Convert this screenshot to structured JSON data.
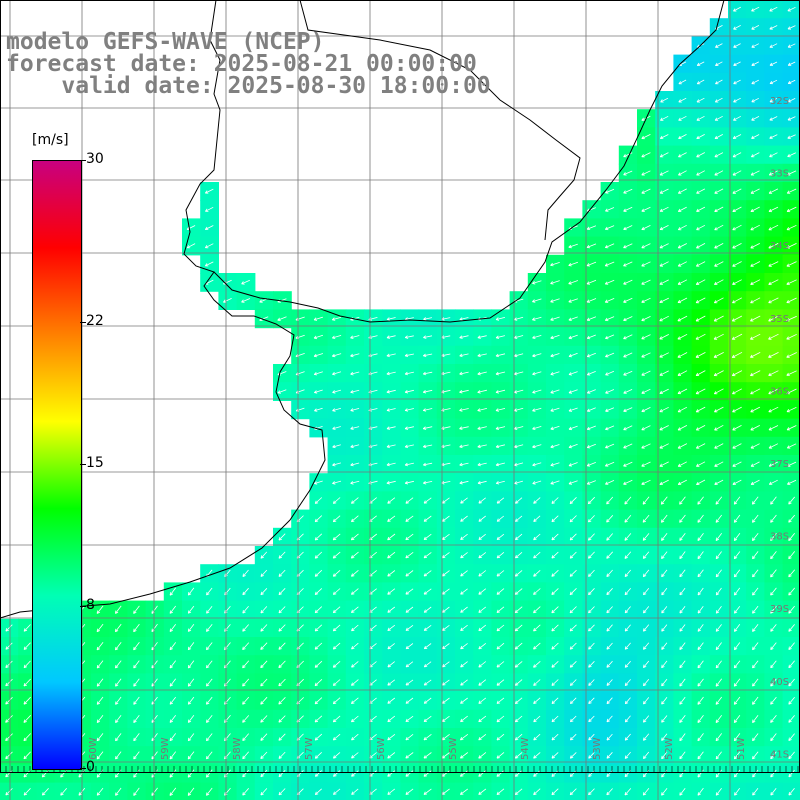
{
  "title": {
    "line1": "modelo GEFS-WAVE (NCEP)",
    "line2": "forecast date: 2025-08-21 00:00:00",
    "line3": "    valid date: 2025-08-30 18:00:00"
  },
  "colorbar": {
    "unit": "[m/s]",
    "ticks": [
      {
        "value": 30,
        "label": "30"
      },
      {
        "value": 22,
        "label": "22"
      },
      {
        "value": 15,
        "label": "15"
      },
      {
        "value": 8,
        "label": "8"
      },
      {
        "value": 0,
        "label": "0"
      }
    ],
    "colors": [
      "#0000ff",
      "#00c8ff",
      "#00ffb4",
      "#00ff00",
      "#ffff00",
      "#ff8000",
      "#ff0000",
      "#c80080"
    ]
  },
  "latitude_labels": [
    "32S",
    "33S",
    "34S",
    "35S",
    "36S",
    "37S",
    "38S",
    "39S",
    "40S",
    "41S"
  ],
  "longitude_labels": [
    "60W",
    "59W",
    "58W",
    "57W",
    "56W",
    "55W",
    "54W",
    "53W",
    "52W",
    "51W"
  ],
  "field": {
    "variable": "wind speed and direction",
    "unit": "m/s",
    "typical_speed_range": [
      6,
      14
    ],
    "dominant_direction": "towards southwest"
  }
}
